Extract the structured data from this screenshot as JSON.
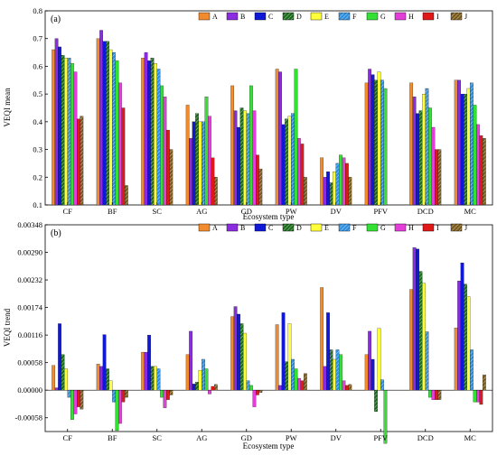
{
  "chart_data": [
    {
      "type": "bar",
      "panel_label": "(a)",
      "xlabel": "Ecosystem type",
      "ylabel": "VEQI mean",
      "ylim": [
        0.1,
        0.8
      ],
      "yticks": [
        "0.1",
        "0.2",
        "0.3",
        "0.4",
        "0.5",
        "0.6",
        "0.7",
        "0.8"
      ],
      "categories": [
        "CF",
        "BF",
        "SC",
        "AG",
        "GD",
        "PW",
        "DV",
        "PFV",
        "DCD",
        "MC"
      ],
      "legend_position": "top-right",
      "series": [
        {
          "name": "A",
          "color": "#F28A2E",
          "pattern": "solid",
          "values": [
            0.66,
            0.7,
            0.63,
            0.46,
            0.53,
            0.59,
            0.27,
            0.54,
            0.54,
            0.55
          ]
        },
        {
          "name": "B",
          "color": "#8B2BE2",
          "pattern": "solid",
          "values": [
            0.7,
            0.73,
            0.65,
            0.34,
            0.44,
            0.58,
            0.2,
            0.59,
            0.49,
            0.55
          ]
        },
        {
          "name": "C",
          "color": "#1018D8",
          "pattern": "solid",
          "values": [
            0.67,
            0.69,
            0.62,
            0.4,
            0.38,
            0.39,
            0.22,
            0.57,
            0.43,
            0.5
          ]
        },
        {
          "name": "D",
          "color": "#1C6B1C",
          "pattern": "hatch",
          "values": [
            0.64,
            0.69,
            0.63,
            0.43,
            0.45,
            0.41,
            0.18,
            0.55,
            0.44,
            0.5
          ]
        },
        {
          "name": "E",
          "color": "#FFFF3A",
          "pattern": "solid",
          "values": [
            0.63,
            0.66,
            0.61,
            0.4,
            0.44,
            0.42,
            0.22,
            0.58,
            0.5,
            0.52
          ]
        },
        {
          "name": "F",
          "color": "#2E8FE0",
          "pattern": "hatch",
          "values": [
            0.63,
            0.65,
            0.59,
            0.4,
            0.43,
            0.43,
            0.25,
            0.55,
            0.52,
            0.54
          ]
        },
        {
          "name": "G",
          "color": "#33E033",
          "pattern": "solid",
          "values": [
            0.61,
            0.62,
            0.53,
            0.49,
            0.53,
            0.59,
            0.28,
            0.52,
            0.45,
            0.46
          ]
        },
        {
          "name": "H",
          "color": "#E33FD8",
          "pattern": "solid",
          "values": [
            0.58,
            0.54,
            0.49,
            0.42,
            0.44,
            0.34,
            0.27,
            null,
            0.38,
            0.39
          ]
        },
        {
          "name": "I",
          "color": "#E01818",
          "pattern": "solid",
          "values": [
            0.41,
            0.45,
            0.37,
            0.27,
            0.28,
            0.32,
            0.25,
            null,
            0.3,
            0.35
          ]
        },
        {
          "name": "J",
          "color": "#7A5A1A",
          "pattern": "hatch",
          "values": [
            0.42,
            0.17,
            0.3,
            0.2,
            0.23,
            0.2,
            0.2,
            null,
            0.3,
            0.34
          ]
        }
      ]
    },
    {
      "type": "bar",
      "panel_label": "(b)",
      "xlabel": "Ecosystem type",
      "ylabel": "VEQI  trend",
      "ylim": [
        -0.00087,
        0.00348
      ],
      "yticks": [
        "-0.00058",
        "0.00000",
        "0.00058",
        "0.00116",
        "0.00174",
        "0.00232",
        "0.00290",
        "0.00348"
      ],
      "categories": [
        "CF",
        "BF",
        "SC",
        "AG",
        "GD",
        "PW",
        "DV",
        "PFV",
        "DCD",
        "MC"
      ],
      "legend_position": "top-right",
      "series": [
        {
          "name": "A",
          "color": "#F28A2E",
          "pattern": "solid",
          "values": [
            0.00052,
            0.00055,
            0.0008,
            0.00075,
            0.00155,
            0.00138,
            0.00216,
            0.00075,
            0.00212,
            0.00131
          ]
        },
        {
          "name": "B",
          "color": "#8B2BE2",
          "pattern": "solid",
          "values": [
            5e-05,
            0.0005,
            0.0008,
            0.00124,
            0.00176,
            0.0001,
            0.0005,
            0.00124,
            0.003,
            0.0023
          ]
        },
        {
          "name": "C",
          "color": "#1018D8",
          "pattern": "solid",
          "values": [
            0.0014,
            0.00117,
            0.00116,
            0.00013,
            0.0016,
            0.00163,
            0.00163,
            0.00065,
            0.00297,
            0.00268
          ]
        },
        {
          "name": "D",
          "color": "#1C6B1C",
          "pattern": "hatch",
          "values": [
            0.00075,
            0.00045,
            0.0005,
            0.00017,
            0.0014,
            0.0006,
            0.00085,
            -0.00045,
            0.0025,
            0.00223
          ]
        },
        {
          "name": "E",
          "color": "#FFFF3A",
          "pattern": "solid",
          "values": [
            0.00045,
            0.0002,
            0.0005,
            0.00042,
            0.0012,
            0.0014,
            0.00065,
            0.0013,
            0.00225,
            0.00197
          ]
        },
        {
          "name": "F",
          "color": "#2E8FE0",
          "pattern": "hatch",
          "values": [
            -0.00015,
            -0.00025,
            0.00045,
            0.00065,
            0.0002,
            0.00065,
            0.00085,
            0.00022,
            0.00123,
            0.00085
          ]
        },
        {
          "name": "G",
          "color": "#33E033",
          "pattern": "solid",
          "values": [
            -0.00062,
            -0.00085,
            -0.00015,
            0.00045,
            0.0001,
            0.00045,
            0.00075,
            -0.00112,
            -0.00015,
            -0.00025
          ]
        },
        {
          "name": "H",
          "color": "#E33FD8",
          "pattern": "solid",
          "values": [
            -0.0005,
            -0.0007,
            -0.00037,
            -8e-05,
            -0.00035,
            0.00025,
            0.0002,
            null,
            -0.0002,
            -0.00025
          ]
        },
        {
          "name": "I",
          "color": "#E01818",
          "pattern": "solid",
          "values": [
            -0.00035,
            -0.00025,
            -0.0002,
            8e-05,
            -0.0001,
            0.0002,
            0.0001,
            null,
            -0.0002,
            -0.0003
          ]
        },
        {
          "name": "J",
          "color": "#7A5A1A",
          "pattern": "hatch",
          "values": [
            -0.0004,
            -0.00015,
            -0.0001,
            0.00012,
            -5e-05,
            0.00035,
            0.00012,
            null,
            -0.0002,
            0.00032
          ]
        }
      ]
    }
  ]
}
